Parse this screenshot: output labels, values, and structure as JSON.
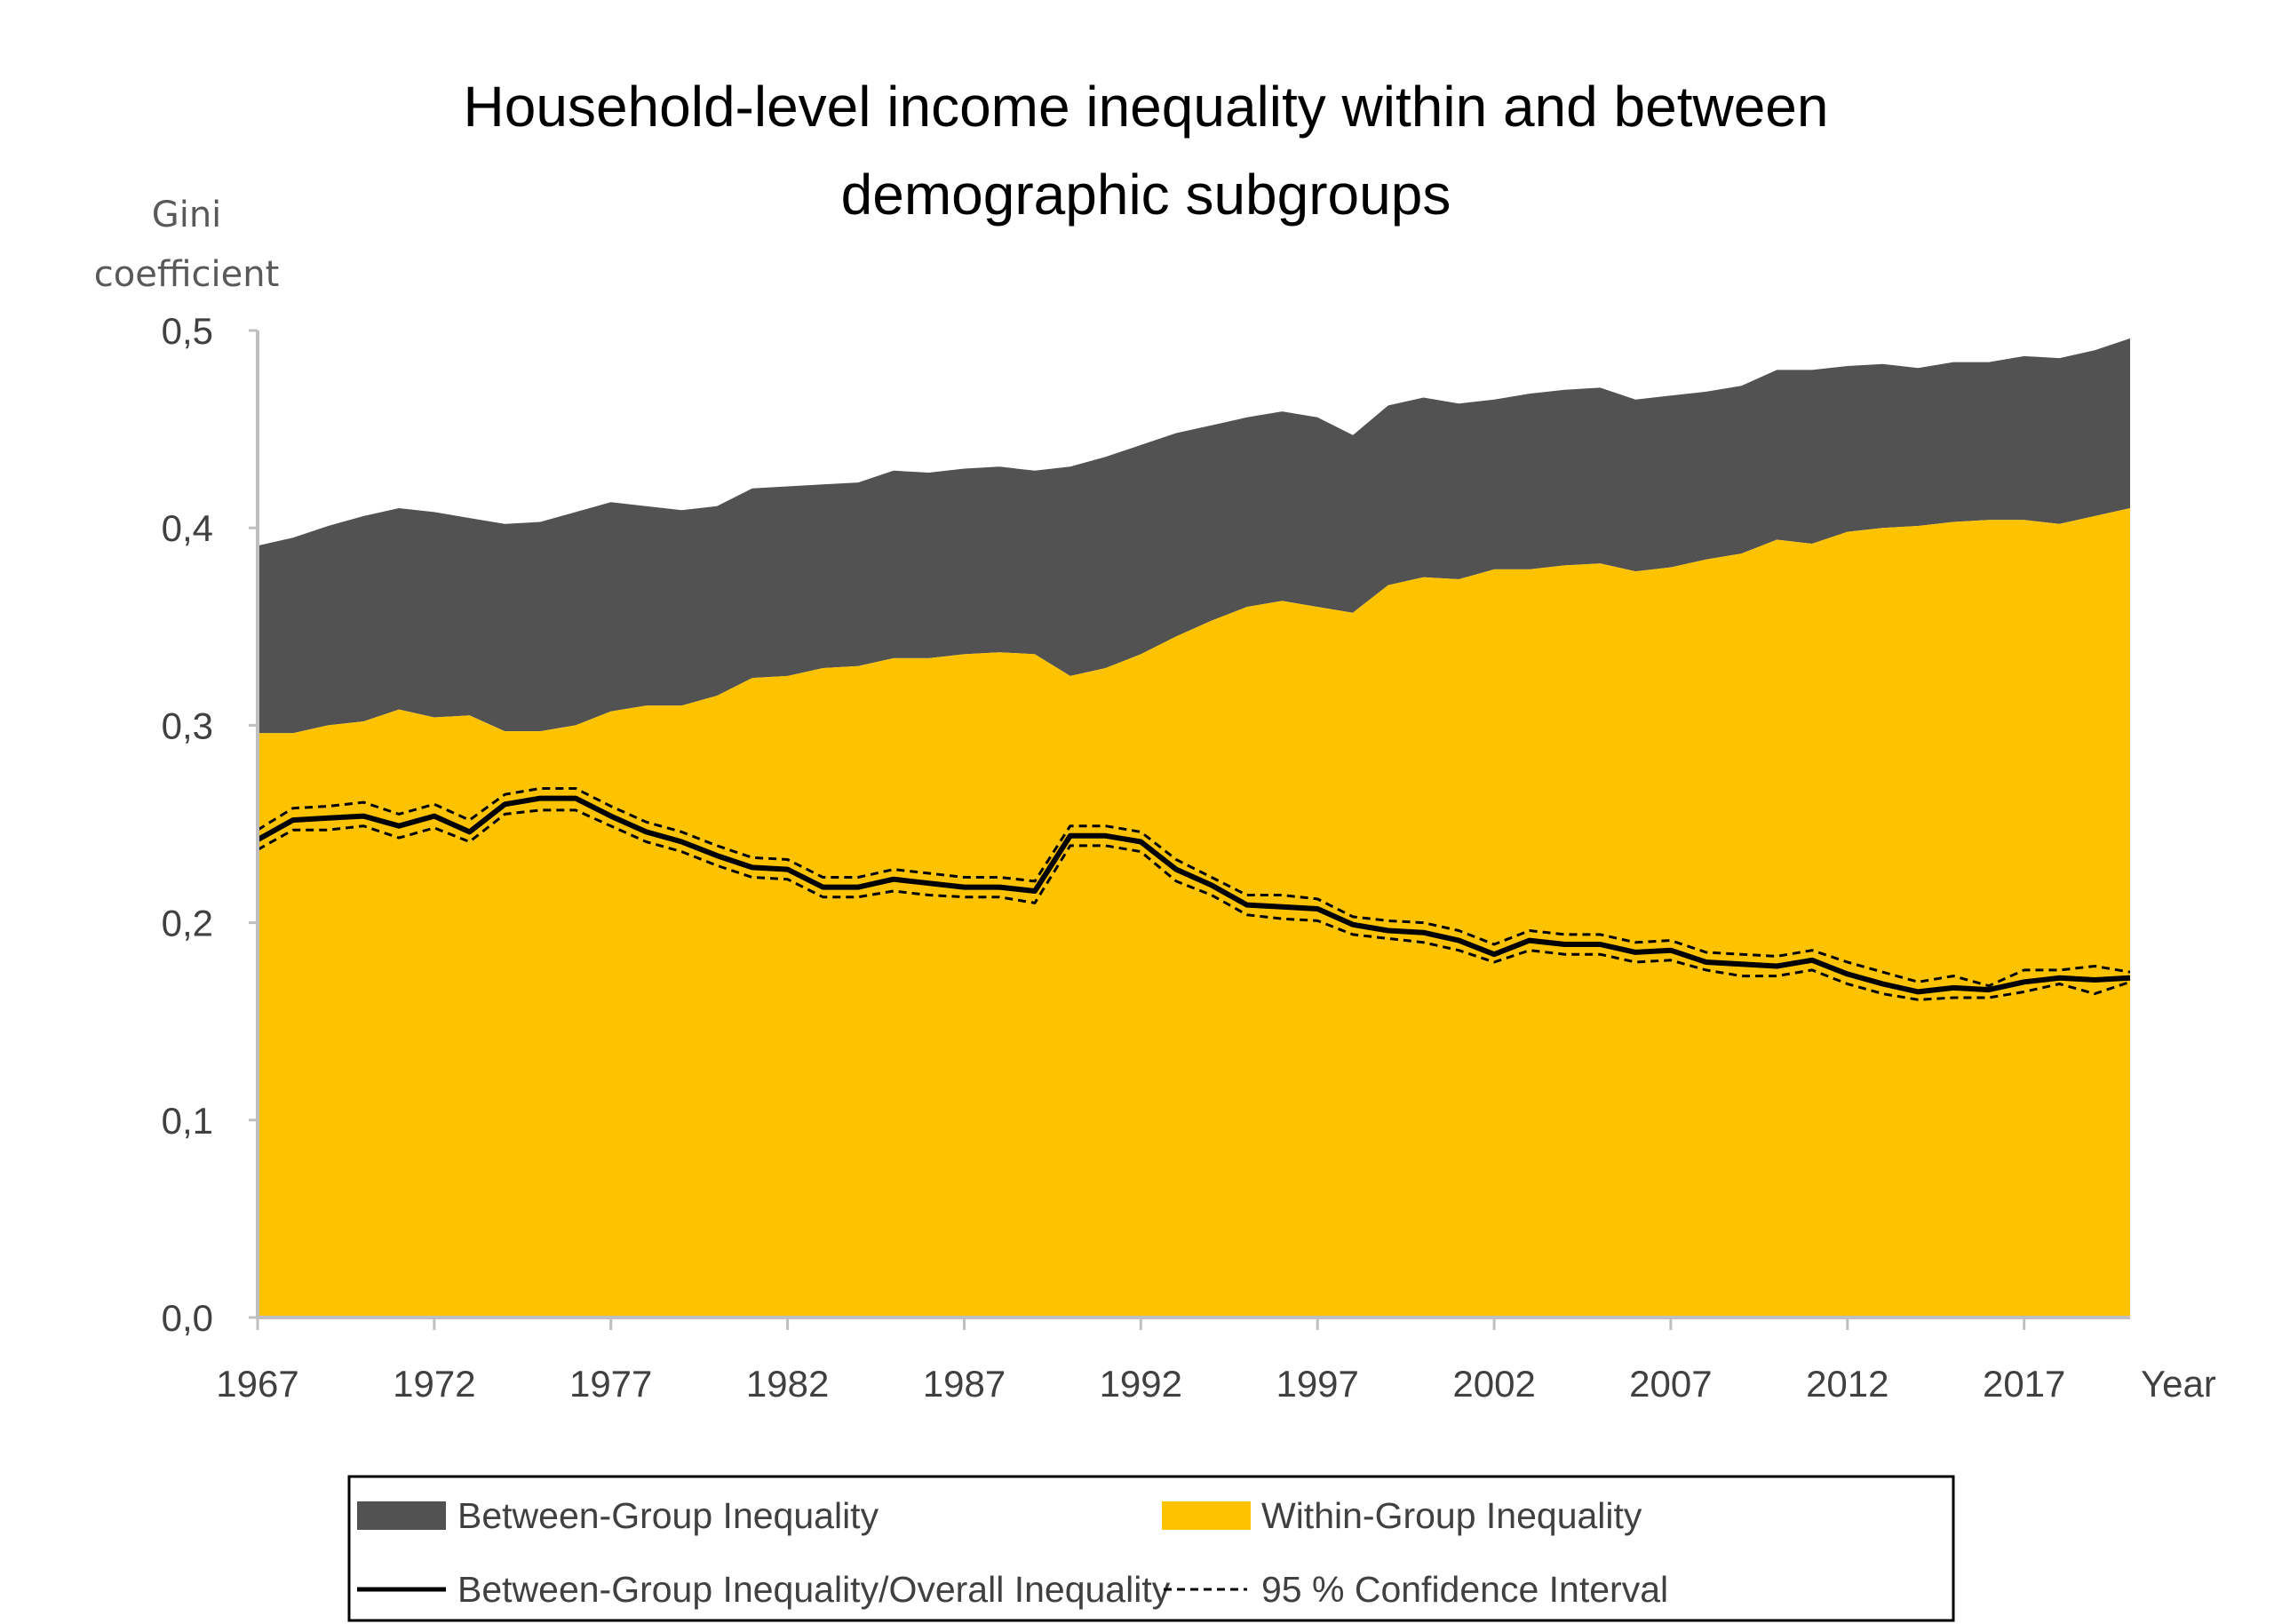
{
  "chart_data": {
    "type": "area",
    "title_lines": [
      "Household-level income inequality within and between",
      "demographic subgroups"
    ],
    "ylabel_lines": [
      "Gini",
      "coefficient"
    ],
    "xlabel": "Year",
    "ylim": [
      0,
      0.5
    ],
    "xlim": [
      1967,
      2020
    ],
    "yticks": [
      0.0,
      0.1,
      0.2,
      0.3,
      0.4,
      0.5
    ],
    "ytick_labels": [
      "0,0",
      "0,1",
      "0,2",
      "0,3",
      "0,4",
      "0,5"
    ],
    "xticks": [
      1967,
      1972,
      1977,
      1982,
      1987,
      1992,
      1997,
      2002,
      2007,
      2012,
      2017
    ],
    "xtick_labels": [
      "1967",
      "1972",
      "1977",
      "1982",
      "1987",
      "1992",
      "1997",
      "2002",
      "2007",
      "2012",
      "2017"
    ],
    "years": [
      1967,
      1968,
      1969,
      1970,
      1971,
      1972,
      1973,
      1974,
      1975,
      1976,
      1977,
      1978,
      1979,
      1980,
      1981,
      1982,
      1983,
      1984,
      1985,
      1986,
      1987,
      1988,
      1989,
      1990,
      1991,
      1992,
      1993,
      1994,
      1995,
      1996,
      1997,
      1998,
      1999,
      2000,
      2001,
      2002,
      2003,
      2004,
      2005,
      2006,
      2007,
      2008,
      2009,
      2010,
      2011,
      2012,
      2013,
      2014,
      2015,
      2016,
      2017,
      2018,
      2019,
      2020
    ],
    "series": [
      {
        "name": "Within-Group Inequality",
        "kind": "area",
        "color": "#FDC300",
        "values": [
          0.296,
          0.296,
          0.3,
          0.302,
          0.308,
          0.304,
          0.305,
          0.297,
          0.297,
          0.3,
          0.307,
          0.31,
          0.31,
          0.315,
          0.324,
          0.325,
          0.329,
          0.33,
          0.334,
          0.334,
          0.336,
          0.337,
          0.336,
          0.325,
          0.329,
          0.336,
          0.345,
          0.353,
          0.36,
          0.363,
          0.36,
          0.357,
          0.371,
          0.375,
          0.374,
          0.379,
          0.379,
          0.381,
          0.382,
          0.378,
          0.38,
          0.384,
          0.387,
          0.394,
          0.392,
          0.398,
          0.4,
          0.401,
          0.403,
          0.404,
          0.404,
          0.402,
          0.406,
          0.41
        ]
      },
      {
        "name": "Between-Group Inequality",
        "kind": "area",
        "color": "#525252",
        "values": [
          0.095,
          0.099,
          0.101,
          0.104,
          0.102,
          0.104,
          0.1,
          0.105,
          0.106,
          0.108,
          0.106,
          0.101,
          0.099,
          0.096,
          0.096,
          0.096,
          0.093,
          0.093,
          0.095,
          0.094,
          0.094,
          0.094,
          0.093,
          0.106,
          0.107,
          0.106,
          0.103,
          0.099,
          0.096,
          0.096,
          0.096,
          0.09,
          0.091,
          0.091,
          0.089,
          0.086,
          0.089,
          0.089,
          0.089,
          0.087,
          0.087,
          0.085,
          0.085,
          0.086,
          0.088,
          0.084,
          0.083,
          0.08,
          0.081,
          0.08,
          0.083,
          0.084,
          0.084,
          0.086
        ]
      },
      {
        "name": "Between-Group Inequality/Overall Inequality",
        "kind": "line",
        "color": "#000000",
        "values": [
          0.242,
          0.252,
          0.253,
          0.254,
          0.249,
          0.254,
          0.246,
          0.26,
          0.263,
          0.263,
          0.254,
          0.246,
          0.241,
          0.234,
          0.228,
          0.227,
          0.218,
          0.218,
          0.222,
          0.22,
          0.218,
          0.218,
          0.216,
          0.244,
          0.244,
          0.241,
          0.227,
          0.219,
          0.209,
          0.208,
          0.207,
          0.199,
          0.196,
          0.195,
          0.191,
          0.184,
          0.191,
          0.189,
          0.189,
          0.185,
          0.186,
          0.18,
          0.179,
          0.178,
          0.181,
          0.174,
          0.169,
          0.165,
          0.167,
          0.166,
          0.17,
          0.172,
          0.171,
          0.172
        ]
      }
    ],
    "confidence_interval": {
      "name": "95 % Confidence Interval",
      "upper": [
        0.247,
        0.258,
        0.259,
        0.261,
        0.255,
        0.26,
        0.252,
        0.265,
        0.268,
        0.268,
        0.259,
        0.251,
        0.246,
        0.239,
        0.233,
        0.232,
        0.223,
        0.223,
        0.227,
        0.225,
        0.223,
        0.223,
        0.221,
        0.249,
        0.249,
        0.246,
        0.232,
        0.223,
        0.214,
        0.214,
        0.212,
        0.203,
        0.201,
        0.2,
        0.196,
        0.189,
        0.196,
        0.194,
        0.194,
        0.19,
        0.191,
        0.185,
        0.184,
        0.183,
        0.186,
        0.18,
        0.175,
        0.17,
        0.173,
        0.168,
        0.176,
        0.176,
        0.178,
        0.175
      ],
      "lower": [
        0.237,
        0.247,
        0.247,
        0.249,
        0.243,
        0.248,
        0.241,
        0.255,
        0.257,
        0.257,
        0.249,
        0.241,
        0.236,
        0.229,
        0.223,
        0.222,
        0.213,
        0.213,
        0.216,
        0.214,
        0.213,
        0.213,
        0.21,
        0.239,
        0.239,
        0.236,
        0.221,
        0.214,
        0.204,
        0.202,
        0.201,
        0.194,
        0.192,
        0.19,
        0.186,
        0.18,
        0.186,
        0.184,
        0.184,
        0.18,
        0.181,
        0.176,
        0.173,
        0.173,
        0.176,
        0.169,
        0.164,
        0.161,
        0.162,
        0.162,
        0.165,
        0.169,
        0.164,
        0.17
      ]
    },
    "legend": [
      {
        "label": "Between-Group Inequality",
        "swatch": "area",
        "color": "#525252"
      },
      {
        "label": "Within-Group Inequality",
        "swatch": "area",
        "color": "#FDC300"
      },
      {
        "label": "Between-Group Inequality/Overall Inequality",
        "swatch": "line",
        "color": "#000000"
      },
      {
        "label": "95 % Confidence Interval",
        "swatch": "dashed",
        "color": "#000000"
      }
    ],
    "legend_position": "bottom",
    "grid": false
  }
}
